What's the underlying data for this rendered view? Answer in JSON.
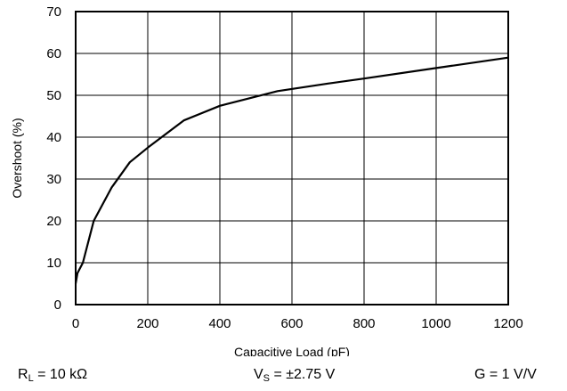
{
  "chart_data": {
    "type": "line",
    "title": "",
    "xlabel": "Capacitive Load (pF)",
    "ylabel": "Overshoot (%)",
    "xlim": [
      0,
      1200
    ],
    "ylim": [
      0,
      70
    ],
    "xticks": [
      "0",
      "200",
      "400",
      "600",
      "800",
      "1000",
      "1200"
    ],
    "yticks": [
      "0",
      "10",
      "20",
      "30",
      "40",
      "50",
      "60",
      "70"
    ],
    "grid": true,
    "series": [
      {
        "color": "#000000",
        "x": [
          0,
          5,
          20,
          50,
          100,
          150,
          200,
          300,
          400,
          560,
          700,
          800,
          1000,
          1200
        ],
        "y": [
          5,
          7.5,
          10,
          20,
          28,
          34,
          37.5,
          44,
          47.5,
          51,
          52.8,
          54,
          56.5,
          59
        ]
      }
    ]
  },
  "conditions": {
    "rl": {
      "prefix": "R",
      "sub": "L",
      "suffix": " = 10 kΩ"
    },
    "vs": {
      "prefix": "V",
      "sub": "S",
      "suffix": " = ±2.75 V"
    },
    "g": "G = 1 V/V"
  }
}
